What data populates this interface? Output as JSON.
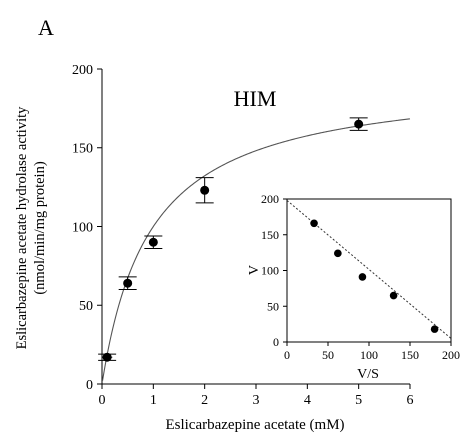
{
  "panel_label": "A",
  "chart_data": [
    {
      "type": "scatter",
      "title": "HIM",
      "xlabel": "Eslicarbazepine acetate (mM)",
      "ylabel_line1": "Eslicarbazepine acetate hydrolase activity",
      "ylabel_line2": "(nmol/min/mg protein)",
      "xlim": [
        0,
        6
      ],
      "ylim": [
        0,
        200
      ],
      "xticks": [
        0,
        1,
        2,
        3,
        4,
        5,
        6
      ],
      "yticks": [
        0,
        50,
        100,
        150,
        200
      ],
      "grid": false,
      "series": [
        {
          "x": [
            0.1,
            0.5,
            1,
            2,
            5
          ],
          "y": [
            17,
            64,
            90,
            123,
            165
          ],
          "yerr": [
            2,
            4,
            4,
            8,
            4
          ],
          "xerr": [
            0.1,
            0,
            0,
            0,
            0
          ]
        }
      ],
      "fit_curve": {
        "vmax": 195,
        "km": 0.95,
        "style": "solid"
      },
      "point_color": "#000000",
      "line_color": "#555555"
    },
    {
      "type": "scatter",
      "title": "",
      "xlabel": "V/S",
      "ylabel": "V",
      "xlim": [
        0,
        200
      ],
      "ylim": [
        0,
        200
      ],
      "xticks": [
        0,
        50,
        100,
        150,
        200
      ],
      "yticks": [
        0,
        50,
        100,
        150,
        200
      ],
      "grid": false,
      "series": [
        {
          "x": [
            33,
            62,
            92,
            130,
            180
          ],
          "y": [
            166,
            124,
            91,
            65,
            18
          ]
        }
      ],
      "fit_line": {
        "x": [
          0,
          200
        ],
        "y": [
          198,
          5
        ],
        "style": "dotted"
      },
      "point_color": "#000000",
      "line_color": "#333333"
    }
  ]
}
